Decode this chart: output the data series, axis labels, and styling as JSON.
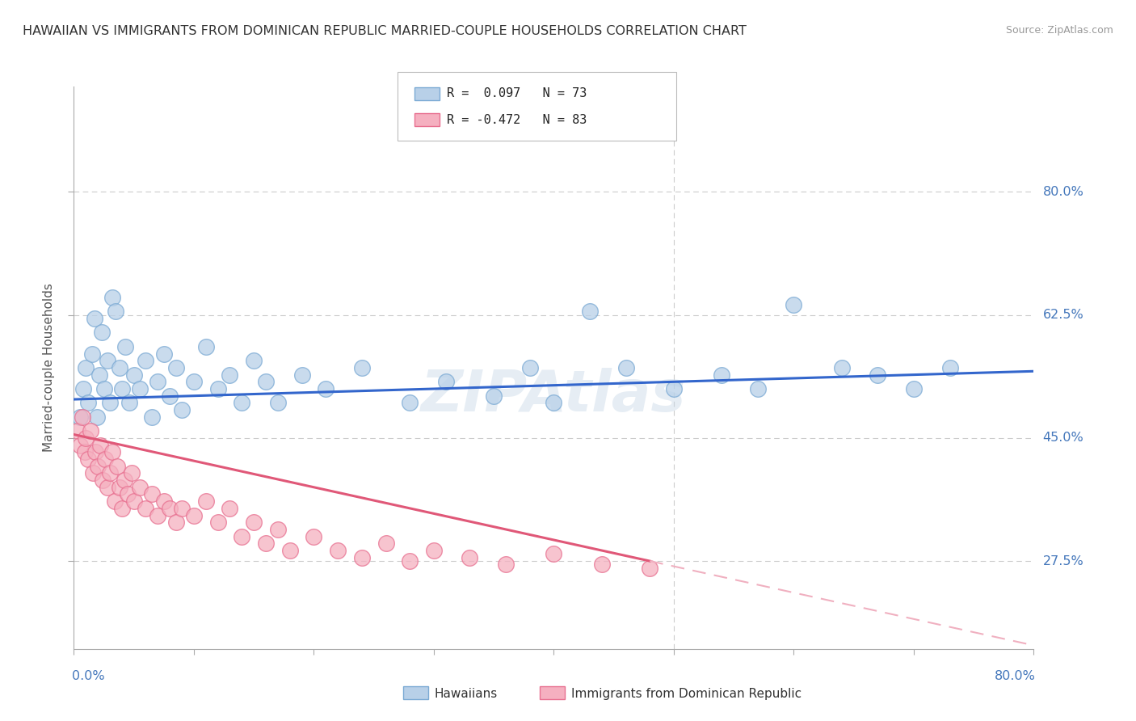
{
  "title": "HAWAIIAN VS IMMIGRANTS FROM DOMINICAN REPUBLIC MARRIED-COUPLE HOUSEHOLDS CORRELATION CHART",
  "source": "Source: ZipAtlas.com",
  "ylabel": "Married-couple Households",
  "watermark": "ZIPAtlas",
  "hawaiian_color": "#b8d0e8",
  "hawaiian_edge": "#7baad4",
  "dominican_color": "#f5b0c0",
  "dominican_edge": "#e87090",
  "hawaiian_line_color": "#3366cc",
  "dominican_line_color": "#e05878",
  "dominican_dash_color": "#f0b0c0",
  "background": "#ffffff",
  "grid_color": "#cccccc",
  "title_color": "#333333",
  "axis_label_color": "#4477bb",
  "xlim": [
    0.0,
    80.0
  ],
  "ylim": [
    15.0,
    95.0
  ],
  "ytick_positions": [
    27.5,
    45.0,
    62.5,
    80.0
  ],
  "xtick_positions": [
    0.0,
    10.0,
    20.0,
    30.0,
    40.0,
    50.0,
    60.0,
    70.0,
    80.0
  ],
  "hawaiians_x": [
    0.5,
    0.8,
    1.0,
    1.2,
    1.5,
    1.7,
    1.9,
    2.1,
    2.3,
    2.5,
    2.8,
    3.0,
    3.2,
    3.5,
    3.8,
    4.0,
    4.3,
    4.6,
    5.0,
    5.5,
    6.0,
    6.5,
    7.0,
    7.5,
    8.0,
    8.5,
    9.0,
    10.0,
    11.0,
    12.0,
    13.0,
    14.0,
    15.0,
    16.0,
    17.0,
    19.0,
    21.0,
    24.0,
    28.0,
    31.0,
    35.0,
    38.0,
    40.0,
    43.0,
    46.0,
    50.0,
    54.0,
    57.0,
    60.0,
    64.0,
    67.0,
    70.0,
    73.0
  ],
  "hawaiians_y": [
    48.0,
    52.0,
    55.0,
    50.0,
    57.0,
    62.0,
    48.0,
    54.0,
    60.0,
    52.0,
    56.0,
    50.0,
    65.0,
    63.0,
    55.0,
    52.0,
    58.0,
    50.0,
    54.0,
    52.0,
    56.0,
    48.0,
    53.0,
    57.0,
    51.0,
    55.0,
    49.0,
    53.0,
    58.0,
    52.0,
    54.0,
    50.0,
    56.0,
    53.0,
    50.0,
    54.0,
    52.0,
    55.0,
    50.0,
    53.0,
    51.0,
    55.0,
    50.0,
    63.0,
    55.0,
    52.0,
    54.0,
    52.0,
    64.0,
    55.0,
    54.0,
    52.0,
    55.0
  ],
  "dominican_x": [
    0.3,
    0.5,
    0.7,
    0.9,
    1.0,
    1.2,
    1.4,
    1.6,
    1.8,
    2.0,
    2.2,
    2.4,
    2.6,
    2.8,
    3.0,
    3.2,
    3.4,
    3.6,
    3.8,
    4.0,
    4.2,
    4.5,
    4.8,
    5.0,
    5.5,
    6.0,
    6.5,
    7.0,
    7.5,
    8.0,
    8.5,
    9.0,
    10.0,
    11.0,
    12.0,
    13.0,
    14.0,
    15.0,
    16.0,
    17.0,
    18.0,
    20.0,
    22.0,
    24.0,
    26.0,
    28.0,
    30.0,
    33.0,
    36.0,
    40.0,
    44.0,
    48.0
  ],
  "dominican_y": [
    46.0,
    44.0,
    48.0,
    43.0,
    45.0,
    42.0,
    46.0,
    40.0,
    43.0,
    41.0,
    44.0,
    39.0,
    42.0,
    38.0,
    40.0,
    43.0,
    36.0,
    41.0,
    38.0,
    35.0,
    39.0,
    37.0,
    40.0,
    36.0,
    38.0,
    35.0,
    37.0,
    34.0,
    36.0,
    35.0,
    33.0,
    35.0,
    34.0,
    36.0,
    33.0,
    35.0,
    31.0,
    33.0,
    30.0,
    32.0,
    29.0,
    31.0,
    29.0,
    28.0,
    30.0,
    27.5,
    29.0,
    28.0,
    27.0,
    28.5,
    27.0,
    26.5
  ],
  "hawaiian_line_x0": 0.0,
  "hawaiian_line_x1": 80.0,
  "hawaiian_line_y0": 50.5,
  "hawaiian_line_y1": 54.5,
  "dominican_solid_x0": 0.0,
  "dominican_solid_x1": 48.0,
  "dominican_solid_y0": 45.5,
  "dominican_solid_y1": 27.5,
  "dominican_dash_x0": 48.0,
  "dominican_dash_x1": 80.0,
  "dominican_dash_y0": 27.5,
  "dominican_dash_y1": 15.5
}
